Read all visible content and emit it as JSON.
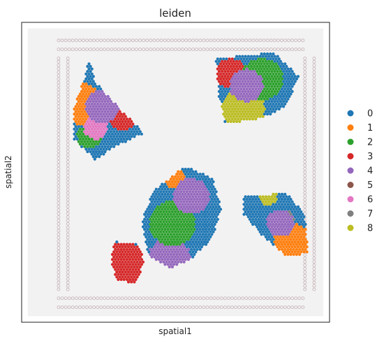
{
  "chart_data": {
    "type": "scatter",
    "title": "leiden",
    "xlabel": "spatial1",
    "ylabel": "spatial2",
    "legend_position": "right",
    "grid": false,
    "legend": [
      {
        "label": "0",
        "color": "#1f77b4"
      },
      {
        "label": "1",
        "color": "#ff7f0e"
      },
      {
        "label": "2",
        "color": "#2ca02c"
      },
      {
        "label": "3",
        "color": "#d62728"
      },
      {
        "label": "4",
        "color": "#9467bd"
      },
      {
        "label": "5",
        "color": "#8c564b"
      },
      {
        "label": "6",
        "color": "#e377c2"
      },
      {
        "label": "7",
        "color": "#7f7f7f"
      },
      {
        "label": "8",
        "color": "#bcbd22"
      }
    ],
    "tissue_regions": [
      {
        "name": "upper-left-section",
        "vertices": [
          [
            0.22,
            0.12
          ],
          [
            0.24,
            0.2
          ],
          [
            0.33,
            0.3
          ],
          [
            0.4,
            0.37
          ],
          [
            0.31,
            0.41
          ],
          [
            0.24,
            0.46
          ],
          [
            0.17,
            0.39
          ],
          [
            0.17,
            0.28
          ],
          [
            0.2,
            0.2
          ]
        ]
      },
      {
        "name": "upper-right-section",
        "vertices": [
          [
            0.63,
            0.12
          ],
          [
            0.82,
            0.1
          ],
          [
            0.9,
            0.18
          ],
          [
            0.86,
            0.28
          ],
          [
            0.78,
            0.32
          ],
          [
            0.66,
            0.34
          ],
          [
            0.64,
            0.24
          ]
        ]
      },
      {
        "name": "center-section",
        "vertices": [
          [
            0.53,
            0.48
          ],
          [
            0.62,
            0.52
          ],
          [
            0.65,
            0.62
          ],
          [
            0.62,
            0.72
          ],
          [
            0.55,
            0.79
          ],
          [
            0.48,
            0.82
          ],
          [
            0.41,
            0.78
          ],
          [
            0.39,
            0.66
          ],
          [
            0.43,
            0.56
          ]
        ]
      },
      {
        "name": "lower-left-section",
        "vertices": [
          [
            0.3,
            0.73
          ],
          [
            0.38,
            0.74
          ],
          [
            0.4,
            0.8
          ],
          [
            0.37,
            0.87
          ],
          [
            0.31,
            0.86
          ],
          [
            0.29,
            0.8
          ]
        ]
      },
      {
        "name": "lower-right-section",
        "vertices": [
          [
            0.72,
            0.58
          ],
          [
            0.86,
            0.57
          ],
          [
            0.92,
            0.64
          ],
          [
            0.93,
            0.77
          ],
          [
            0.86,
            0.78
          ],
          [
            0.79,
            0.72
          ],
          [
            0.72,
            0.64
          ]
        ]
      }
    ],
    "cluster_zones": [
      {
        "cluster": "4",
        "cx": 0.26,
        "cy": 0.28,
        "r": 0.055
      },
      {
        "cluster": "7",
        "cx": 0.27,
        "cy": 0.29,
        "r": 0.04
      },
      {
        "cluster": "4",
        "cx": 0.73,
        "cy": 0.21,
        "r": 0.055
      },
      {
        "cluster": "7",
        "cx": 0.74,
        "cy": 0.22,
        "r": 0.04
      },
      {
        "cluster": "4",
        "cx": 0.55,
        "cy": 0.58,
        "r": 0.06
      },
      {
        "cluster": "7",
        "cx": 0.55,
        "cy": 0.58,
        "r": 0.045
      },
      {
        "cluster": "4",
        "cx": 0.84,
        "cy": 0.67,
        "r": 0.045
      },
      {
        "cluster": "7",
        "cx": 0.85,
        "cy": 0.66,
        "r": 0.035
      },
      {
        "cluster": "3",
        "cx": 0.33,
        "cy": 0.81,
        "r": 0.08
      },
      {
        "cluster": "2",
        "cx": 0.78,
        "cy": 0.19,
        "r": 0.07
      },
      {
        "cluster": "3",
        "cx": 0.68,
        "cy": 0.17,
        "r": 0.05
      },
      {
        "cluster": "8",
        "cx": 0.72,
        "cy": 0.29,
        "r": 0.07
      },
      {
        "cluster": "1",
        "cx": 0.88,
        "cy": 0.73,
        "r": 0.06
      },
      {
        "cluster": "2",
        "cx": 0.49,
        "cy": 0.67,
        "r": 0.075
      },
      {
        "cluster": "4",
        "cx": 0.48,
        "cy": 0.79,
        "r": 0.07
      },
      {
        "cluster": "6",
        "cx": 0.24,
        "cy": 0.35,
        "r": 0.04
      },
      {
        "cluster": "2",
        "cx": 0.22,
        "cy": 0.38,
        "r": 0.04
      },
      {
        "cluster": "1",
        "cx": 0.19,
        "cy": 0.27,
        "r": 0.07
      },
      {
        "cluster": "3",
        "cx": 0.33,
        "cy": 0.31,
        "r": 0.05
      },
      {
        "cluster": "1",
        "cx": 0.5,
        "cy": 0.52,
        "r": 0.035
      },
      {
        "cluster": "8",
        "cx": 0.8,
        "cy": 0.58,
        "r": 0.03
      },
      {
        "cluster": "0",
        "cx": 0.62,
        "cy": 0.62,
        "r": 0.06
      }
    ]
  }
}
